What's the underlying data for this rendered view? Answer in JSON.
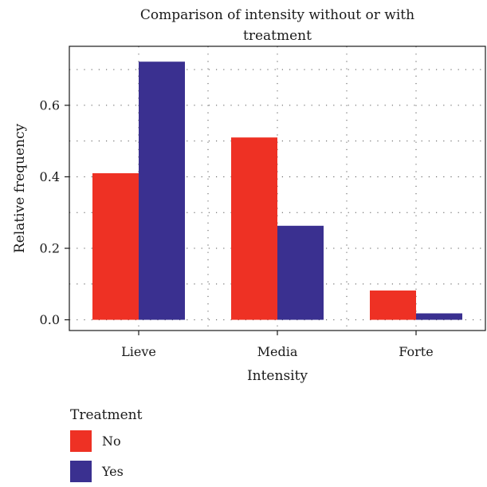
{
  "chart_data": {
    "type": "bar",
    "title_lines": [
      "Comparison of intensity without or with",
      "treatment"
    ],
    "xlabel": "Intensity",
    "ylabel": "Relative frequency",
    "categories": [
      "Lieve",
      "Media",
      "Forte"
    ],
    "ylim": [
      -0.03,
      0.765
    ],
    "yticks": [
      0.0,
      0.2,
      0.4,
      0.6
    ],
    "ytick_labels": [
      "0.0",
      "0.2",
      "0.4",
      "0.6"
    ],
    "grid": "dotted",
    "legend_position": "bottom-left",
    "legend_title": "Treatment",
    "series": [
      {
        "name": "No",
        "color": "#ee3124",
        "values": [
          0.41,
          0.51,
          0.082
        ]
      },
      {
        "name": "Yes",
        "color": "#3a3090",
        "values": [
          0.722,
          0.263,
          0.018
        ]
      }
    ]
  }
}
